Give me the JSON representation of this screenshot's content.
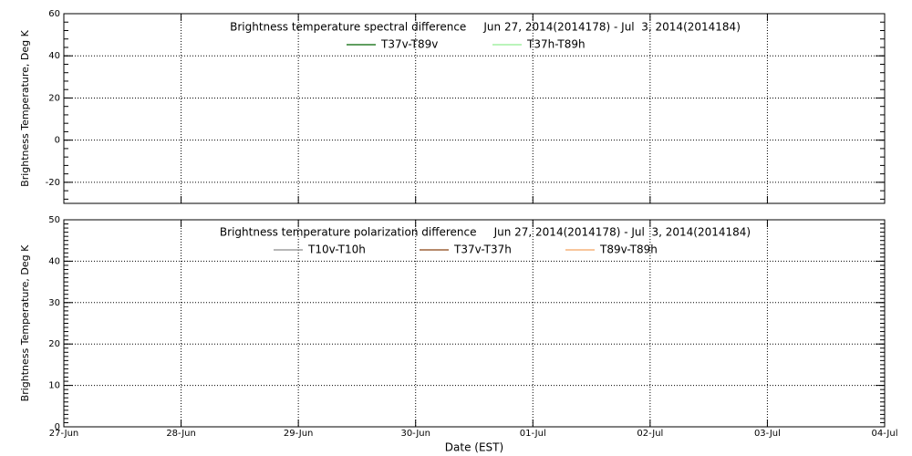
{
  "chart_data": [
    {
      "type": "line",
      "title": "Brightness temperature spectral difference     Jun 27, 2014(2014178) - Jul  3, 2014(2014184)",
      "ylabel": "Brightness Temperature, Deg K",
      "ylim": [
        -30,
        60
      ],
      "yticks": [
        -20,
        0,
        20,
        40,
        60
      ],
      "grid": true,
      "series": [
        {
          "name": "T37v-T89v",
          "color": "#006400",
          "values": [
            null,
            null,
            null,
            null,
            null,
            null,
            null,
            null
          ]
        },
        {
          "name": "T37h-T89h",
          "color": "#90ee90",
          "values": [
            null,
            null,
            null,
            null,
            null,
            null,
            null,
            null
          ]
        }
      ]
    },
    {
      "type": "line",
      "title": "Brightness temperature polarization difference     Jun 27, 2014(2014178) - Jul  3, 2014(2014184)",
      "ylabel": "Brightness Temperature, Deg K",
      "xlabel": "Date (EST)",
      "categories": [
        "27-Jun",
        "28-Jun",
        "29-Jun",
        "30-Jun",
        "01-Jul",
        "02-Jul",
        "03-Jul",
        "04-Jul"
      ],
      "ylim": [
        0,
        50
      ],
      "yticks": [
        0,
        10,
        20,
        30,
        40,
        50
      ],
      "grid": true,
      "series": [
        {
          "name": "T10v-T10h",
          "color": "#8c8c8c",
          "values": [
            null,
            null,
            null,
            null,
            null,
            null,
            null,
            null
          ]
        },
        {
          "name": "T37v-T37h",
          "color": "#8b4513",
          "values": [
            null,
            null,
            null,
            null,
            null,
            null,
            null,
            null
          ]
        },
        {
          "name": "T89v-T89h",
          "color": "#f4a460",
          "values": [
            null,
            null,
            null,
            null,
            null,
            null,
            null,
            null
          ]
        }
      ]
    }
  ]
}
